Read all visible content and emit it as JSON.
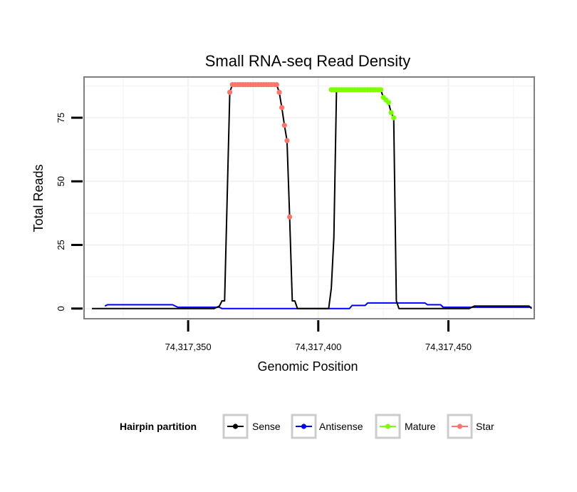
{
  "chart_data": {
    "type": "line",
    "title": "Small RNA-seq Read Density",
    "xlabel": "Genomic Position",
    "ylabel": "Total Reads",
    "xlim": [
      74317310,
      74317483
    ],
    "ylim": [
      -4,
      91
    ],
    "x_ticks": [
      74317350,
      74317400,
      74317450
    ],
    "x_tick_labels": [
      "74,317,350",
      "74,317,400",
      "74,317,450"
    ],
    "y_ticks": [
      0,
      25,
      50,
      75
    ],
    "y_tick_labels": [
      "0",
      "25",
      "50",
      "75"
    ],
    "grid": true,
    "legend_title": "Hairpin partition",
    "legend_position": "bottom",
    "colors": {
      "sense": "#000000",
      "antisense": "#0000ff",
      "mature": "#7cff00",
      "star": "#f8766d",
      "panel_border": "#7f7f7f",
      "grid": "#f2f2f2",
      "legend_key_border": "#cccccc"
    },
    "series": [
      {
        "name": "Sense",
        "key": "sense",
        "x": [
          74317313,
          74317360,
          74317362,
          74317363,
          74317364,
          74317366,
          74317367,
          74317384,
          74317385,
          74317386,
          74317387,
          74317388,
          74317389,
          74317390,
          74317391,
          74317392,
          74317404,
          74317405,
          74317406,
          74317407,
          74317408,
          74317424,
          74317425,
          74317426,
          74317427,
          74317428,
          74317429,
          74317430,
          74317431,
          74317458,
          74317460,
          74317481,
          74317482
        ],
        "values": [
          0,
          0,
          1,
          3,
          3,
          85,
          88,
          88,
          85,
          79,
          72,
          66,
          36,
          3,
          3,
          0,
          0,
          8,
          28,
          86,
          86,
          86,
          83,
          82,
          81,
          77,
          75,
          3,
          0,
          0,
          1,
          1,
          0
        ]
      },
      {
        "name": "Antisense",
        "key": "antisense",
        "x": [
          74317318,
          74317319,
          74317344,
          74317346,
          74317362,
          74317363,
          74317397,
          74317400,
          74317404,
          74317405,
          74317412,
          74317413,
          74317418,
          74317419,
          74317425,
          74317426,
          74317441,
          74317442,
          74317447,
          74317448,
          74317482
        ],
        "values": [
          1,
          1.5,
          1.5,
          0.5,
          0.5,
          0,
          0,
          0,
          0,
          0,
          0,
          1.2,
          1.2,
          2.2,
          2.2,
          2.2,
          2.2,
          1.5,
          1.5,
          0.5,
          0.5
        ]
      },
      {
        "name": "Mature",
        "key": "mature",
        "x": [
          74317405,
          74317406,
          74317407,
          74317408,
          74317409,
          74317410,
          74317411,
          74317412,
          74317413,
          74317414,
          74317415,
          74317416,
          74317417,
          74317418,
          74317419,
          74317420,
          74317421,
          74317422,
          74317423,
          74317424,
          74317425,
          74317426,
          74317427,
          74317428,
          74317429
        ],
        "values": [
          86,
          86,
          86,
          86,
          86,
          86,
          86,
          86,
          86,
          86,
          86,
          86,
          86,
          86,
          86,
          86,
          86,
          86,
          86,
          86,
          83,
          82,
          81,
          77,
          75
        ]
      },
      {
        "name": "Star",
        "key": "star",
        "x": [
          74317366,
          74317367,
          74317368,
          74317369,
          74317370,
          74317371,
          74317372,
          74317373,
          74317374,
          74317375,
          74317376,
          74317377,
          74317378,
          74317379,
          74317380,
          74317381,
          74317382,
          74317383,
          74317384,
          74317385,
          74317386,
          74317387,
          74317388,
          74317389
        ],
        "values": [
          85,
          88,
          88,
          88,
          88,
          88,
          88,
          88,
          88,
          88,
          88,
          88,
          88,
          88,
          88,
          88,
          88,
          88,
          88,
          85,
          79,
          72,
          66,
          36
        ]
      }
    ]
  }
}
